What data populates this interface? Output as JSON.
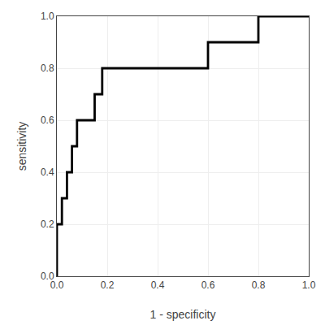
{
  "chart_data": {
    "type": "line",
    "x": [
      0.0,
      0.0,
      0.02,
      0.02,
      0.04,
      0.04,
      0.06,
      0.06,
      0.08,
      0.08,
      0.15,
      0.15,
      0.18,
      0.18,
      0.25,
      0.6,
      0.6,
      0.8,
      0.8,
      1.0
    ],
    "values": [
      0.0,
      0.2,
      0.2,
      0.3,
      0.3,
      0.4,
      0.4,
      0.5,
      0.5,
      0.6,
      0.6,
      0.7,
      0.7,
      0.8,
      0.8,
      0.8,
      0.9,
      0.9,
      1.0,
      1.0
    ],
    "color": "#000000",
    "xlabel": "1 - specificity",
    "ylabel": "sensitivity",
    "xlim": [
      0.0,
      1.0
    ],
    "ylim": [
      0.0,
      1.0
    ],
    "xticks": [
      {
        "value": 0.0,
        "label": "0.0"
      },
      0.2,
      0.4,
      0.6,
      0.8,
      {
        "value": 1.0,
        "label": "1.0"
      }
    ],
    "yticks": [
      {
        "value": 0.0,
        "label": "0.0"
      },
      0.2,
      0.4,
      0.6,
      0.8,
      {
        "value": 1.0,
        "label": "1.0"
      }
    ],
    "grid": true
  }
}
